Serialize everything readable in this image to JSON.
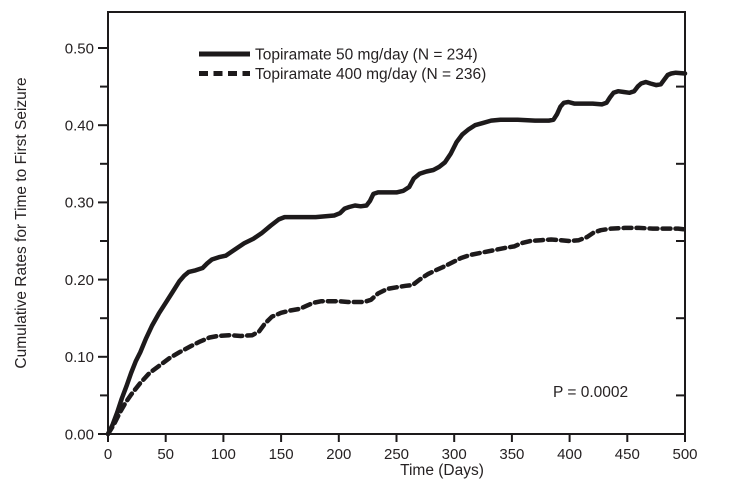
{
  "figure": {
    "kind": "survival-analysis-figure",
    "colors": {
      "line": "#1d1a1b",
      "text": "#262223",
      "background": "#ffffff"
    }
  },
  "chart_data": {
    "type": "line",
    "title": "",
    "xlabel": "Time (Days)",
    "ylabel": "Cumulative Rates for Time to First Seizure",
    "annotation": "P = 0.0002",
    "xlim": [
      0,
      500
    ],
    "ylim": [
      0,
      0.5
    ],
    "grid": false,
    "legend_position": "top-center-inside",
    "x_ticks": [
      0,
      50,
      100,
      150,
      200,
      250,
      300,
      350,
      400,
      450,
      500
    ],
    "y_ticks_major": [
      0,
      0.1,
      0.2,
      0.3,
      0.4,
      0.5
    ],
    "y_tick_labels": [
      "0.00",
      "0.10",
      "0.20",
      "0.30",
      "0.40",
      "0.50"
    ],
    "y_ticks_minor": [
      0.05,
      0.15,
      0.25,
      0.35,
      0.45
    ],
    "right_spine_ticks": [
      0.05,
      0.15,
      0.25,
      0.35,
      0.45
    ],
    "series": [
      {
        "name": "Topiramate 50 mg/day (N = 234)",
        "dose": "50 mg/day",
        "n": 234,
        "style": "solid",
        "points": [
          [
            0,
            0
          ],
          [
            4,
            0.012
          ],
          [
            8,
            0.028
          ],
          [
            12,
            0.046
          ],
          [
            16,
            0.062
          ],
          [
            20,
            0.079
          ],
          [
            24,
            0.094
          ],
          [
            28,
            0.106
          ],
          [
            33,
            0.124
          ],
          [
            38,
            0.14
          ],
          [
            44,
            0.156
          ],
          [
            50,
            0.17
          ],
          [
            56,
            0.184
          ],
          [
            62,
            0.198
          ],
          [
            66,
            0.205
          ],
          [
            70,
            0.21
          ],
          [
            76,
            0.212
          ],
          [
            82,
            0.215
          ],
          [
            86,
            0.221
          ],
          [
            90,
            0.226
          ],
          [
            96,
            0.229
          ],
          [
            102,
            0.231
          ],
          [
            110,
            0.239
          ],
          [
            118,
            0.247
          ],
          [
            126,
            0.253
          ],
          [
            133,
            0.26
          ],
          [
            141,
            0.27
          ],
          [
            148,
            0.278
          ],
          [
            153,
            0.281
          ],
          [
            165,
            0.281
          ],
          [
            180,
            0.281
          ],
          [
            196,
            0.283
          ],
          [
            201,
            0.286
          ],
          [
            205,
            0.292
          ],
          [
            209,
            0.294
          ],
          [
            214,
            0.296
          ],
          [
            219,
            0.295
          ],
          [
            224,
            0.296
          ],
          [
            227,
            0.302
          ],
          [
            230,
            0.311
          ],
          [
            234,
            0.313
          ],
          [
            242,
            0.313
          ],
          [
            250,
            0.313
          ],
          [
            256,
            0.315
          ],
          [
            261,
            0.32
          ],
          [
            265,
            0.331
          ],
          [
            270,
            0.337
          ],
          [
            276,
            0.34
          ],
          [
            282,
            0.342
          ],
          [
            287,
            0.346
          ],
          [
            292,
            0.352
          ],
          [
            297,
            0.363
          ],
          [
            302,
            0.378
          ],
          [
            307,
            0.388
          ],
          [
            312,
            0.394
          ],
          [
            318,
            0.4
          ],
          [
            325,
            0.403
          ],
          [
            332,
            0.406
          ],
          [
            340,
            0.407
          ],
          [
            355,
            0.407
          ],
          [
            370,
            0.406
          ],
          [
            382,
            0.406
          ],
          [
            386,
            0.407
          ],
          [
            389,
            0.414
          ],
          [
            392,
            0.424
          ],
          [
            395,
            0.429
          ],
          [
            399,
            0.43
          ],
          [
            404,
            0.428
          ],
          [
            412,
            0.428
          ],
          [
            420,
            0.428
          ],
          [
            428,
            0.427
          ],
          [
            432,
            0.429
          ],
          [
            435,
            0.436
          ],
          [
            438,
            0.442
          ],
          [
            442,
            0.444
          ],
          [
            447,
            0.443
          ],
          [
            452,
            0.442
          ],
          [
            456,
            0.444
          ],
          [
            459,
            0.45
          ],
          [
            462,
            0.454
          ],
          [
            466,
            0.456
          ],
          [
            470,
            0.454
          ],
          [
            475,
            0.452
          ],
          [
            479,
            0.453
          ],
          [
            482,
            0.459
          ],
          [
            485,
            0.465
          ],
          [
            488,
            0.467
          ],
          [
            492,
            0.468
          ],
          [
            500,
            0.467
          ]
        ]
      },
      {
        "name": "Topiramate 400 mg/day (N = 236)",
        "dose": "400 mg/day",
        "n": 236,
        "style": "dashed",
        "points": [
          [
            0,
            0
          ],
          [
            5,
            0.012
          ],
          [
            10,
            0.027
          ],
          [
            15,
            0.04
          ],
          [
            20,
            0.051
          ],
          [
            28,
            0.066
          ],
          [
            36,
            0.079
          ],
          [
            45,
            0.089
          ],
          [
            53,
            0.098
          ],
          [
            62,
            0.106
          ],
          [
            72,
            0.114
          ],
          [
            80,
            0.12
          ],
          [
            88,
            0.125
          ],
          [
            95,
            0.127
          ],
          [
            105,
            0.128
          ],
          [
            115,
            0.127
          ],
          [
            125,
            0.128
          ],
          [
            131,
            0.133
          ],
          [
            136,
            0.143
          ],
          [
            142,
            0.152
          ],
          [
            150,
            0.157
          ],
          [
            158,
            0.16
          ],
          [
            166,
            0.162
          ],
          [
            172,
            0.166
          ],
          [
            178,
            0.17
          ],
          [
            185,
            0.172
          ],
          [
            192,
            0.172
          ],
          [
            200,
            0.172
          ],
          [
            208,
            0.171
          ],
          [
            216,
            0.171
          ],
          [
            222,
            0.171
          ],
          [
            228,
            0.174
          ],
          [
            234,
            0.182
          ],
          [
            242,
            0.188
          ],
          [
            250,
            0.19
          ],
          [
            258,
            0.192
          ],
          [
            264,
            0.193
          ],
          [
            270,
            0.2
          ],
          [
            277,
            0.207
          ],
          [
            284,
            0.212
          ],
          [
            290,
            0.216
          ],
          [
            298,
            0.222
          ],
          [
            306,
            0.228
          ],
          [
            314,
            0.232
          ],
          [
            324,
            0.235
          ],
          [
            334,
            0.238
          ],
          [
            344,
            0.241
          ],
          [
            352,
            0.243
          ],
          [
            358,
            0.247
          ],
          [
            366,
            0.25
          ],
          [
            375,
            0.251
          ],
          [
            384,
            0.252
          ],
          [
            392,
            0.251
          ],
          [
            400,
            0.25
          ],
          [
            408,
            0.251
          ],
          [
            415,
            0.255
          ],
          [
            421,
            0.261
          ],
          [
            427,
            0.264
          ],
          [
            436,
            0.266
          ],
          [
            448,
            0.267
          ],
          [
            460,
            0.267
          ],
          [
            472,
            0.266
          ],
          [
            484,
            0.266
          ],
          [
            494,
            0.266
          ],
          [
            500,
            0.265
          ]
        ]
      }
    ]
  }
}
